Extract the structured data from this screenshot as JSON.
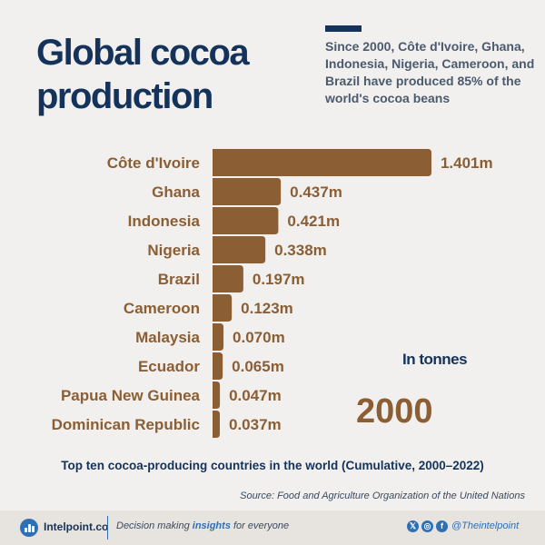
{
  "header": {
    "title": "Global cocoa production",
    "subtitle": "Since 2000, Côte d'Ivoire, Ghana, Indonesia, Nigeria, Cameroon, and Brazil have produced 85% of the world's cocoa beans"
  },
  "chart_data": {
    "type": "bar",
    "orientation": "horizontal",
    "categories": [
      "Côte d'Ivoire",
      "Ghana",
      "Indonesia",
      "Nigeria",
      "Brazil",
      "Cameroon",
      "Malaysia",
      "Ecuador",
      "Papua New Guinea",
      "Dominican Republic"
    ],
    "values": [
      1.401,
      0.437,
      0.421,
      0.338,
      0.197,
      0.123,
      0.07,
      0.065,
      0.047,
      0.037
    ],
    "value_labels": [
      "1.401m",
      "0.437m",
      "0.421m",
      "0.338m",
      "0.197m",
      "0.123m",
      "0.070m",
      "0.065m",
      "0.047m",
      "0.037m"
    ],
    "unit_label": "In tonnes",
    "year": "2000",
    "bar_color": "#8b5e34",
    "label_color": "#8b5e34",
    "grid": false
  },
  "caption": "Top ten cocoa-producing countries in the world (Cumulative, 2000–2022)",
  "source": "Source: Food and Agriculture Organization of the United Nations",
  "footer": {
    "brand": "Intelpoint.co",
    "tagline_pre": "Decision making ",
    "tagline_bold": "insights",
    "tagline_post": " for everyone",
    "handle": "@Theintelpoint",
    "social_icons": [
      "x-icon",
      "instagram-icon",
      "facebook-icon"
    ]
  },
  "colors": {
    "navy": "#15335a",
    "brown": "#8b5e34",
    "blue": "#2f6fb3",
    "background": "#f1f0ee"
  }
}
